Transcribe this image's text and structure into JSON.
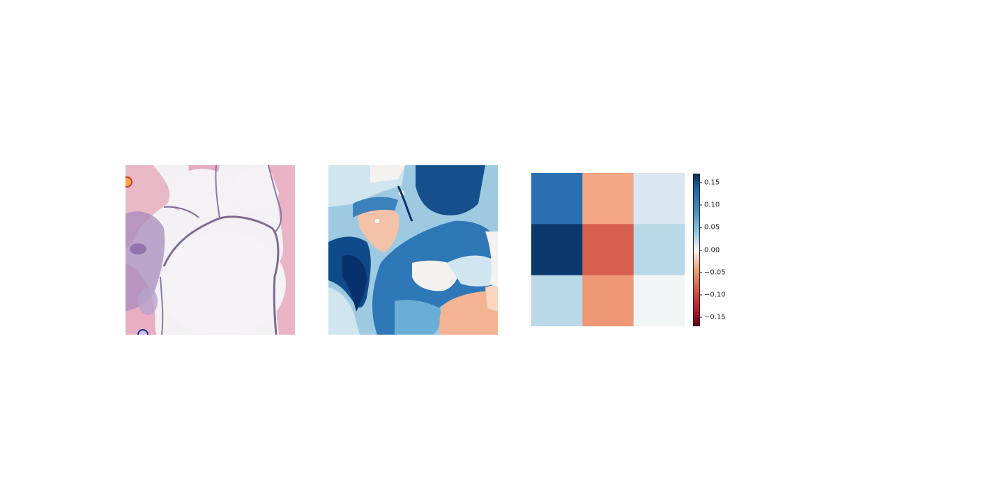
{
  "figure": {
    "panels": [
      "histology-image",
      "segmentation-map",
      "heatmap"
    ]
  },
  "chart_data": {
    "type": "heatmap",
    "rows": 3,
    "cols": 3,
    "values": [
      [
        0.125,
        -0.04,
        0.012
      ],
      [
        0.165,
        -0.085,
        0.025
      ],
      [
        0.025,
        -0.05,
        0.002
      ]
    ],
    "colormap": "RdBu",
    "vmin": -0.17,
    "vmax": 0.17,
    "colorbar": {
      "ticks": [
        0.15,
        0.1,
        0.05,
        0.0,
        -0.05,
        -0.1,
        -0.15
      ],
      "labels": [
        "0.15",
        "0.10",
        "0.05",
        "0.00",
        "−0.05",
        "−0.10",
        "−0.15"
      ]
    },
    "axes_visible": false
  },
  "colors": {
    "tissue_pink": "#e6a7bb",
    "tissue_purple": "#8a6aa6",
    "membrane": "#7d6b93",
    "background_white": "#f3f1f4",
    "seg_dark_blue": "#08306b",
    "seg_mid_blue": "#2f78b7",
    "seg_light_blue": "#a6cde3",
    "seg_peach": "#f4c2a8",
    "seg_white": "#f4f2f0"
  }
}
